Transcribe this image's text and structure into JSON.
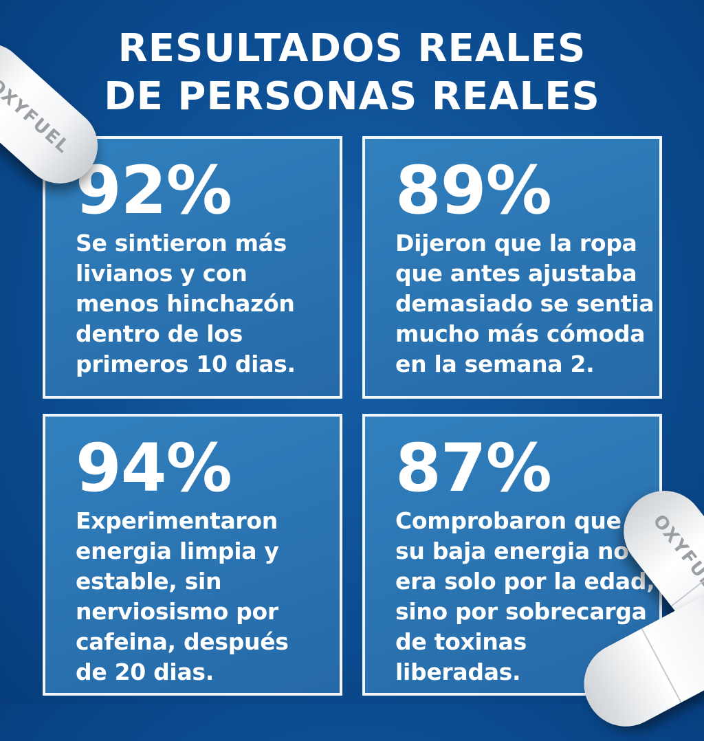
{
  "title": {
    "line1": "RESULTADOS REALES",
    "line2": "DE PERSONAS REALES"
  },
  "cards": [
    {
      "percent": "92%",
      "lines": [
        "Se sintieron más",
        "livianos y con",
        "menos hinchazón",
        "dentro de los",
        "primeros 10 dias."
      ]
    },
    {
      "percent": "89%",
      "lines": [
        "Dijeron que la ropa",
        "que antes ajustaba",
        "demasiado se sentia",
        "mucho más cómoda",
        "en la semana 2."
      ]
    },
    {
      "percent": "94%",
      "lines": [
        "Experimentaron",
        "energia limpia y",
        "estable, sin",
        "nerviosismo por",
        "cafeina, después",
        "de 20 dias."
      ]
    },
    {
      "percent": "87%",
      "lines": [
        "Comprobaron que",
        "su baja energia no",
        "era solo por la edad,",
        "sino por sobrecarga",
        "de toxinas",
        "liberadas."
      ]
    }
  ],
  "pill_brand": "OXYFUEL",
  "colors": {
    "background": "#0c4d92",
    "card": "#2a72b0",
    "border": "#f2f6fa",
    "text": "#ffffff"
  }
}
